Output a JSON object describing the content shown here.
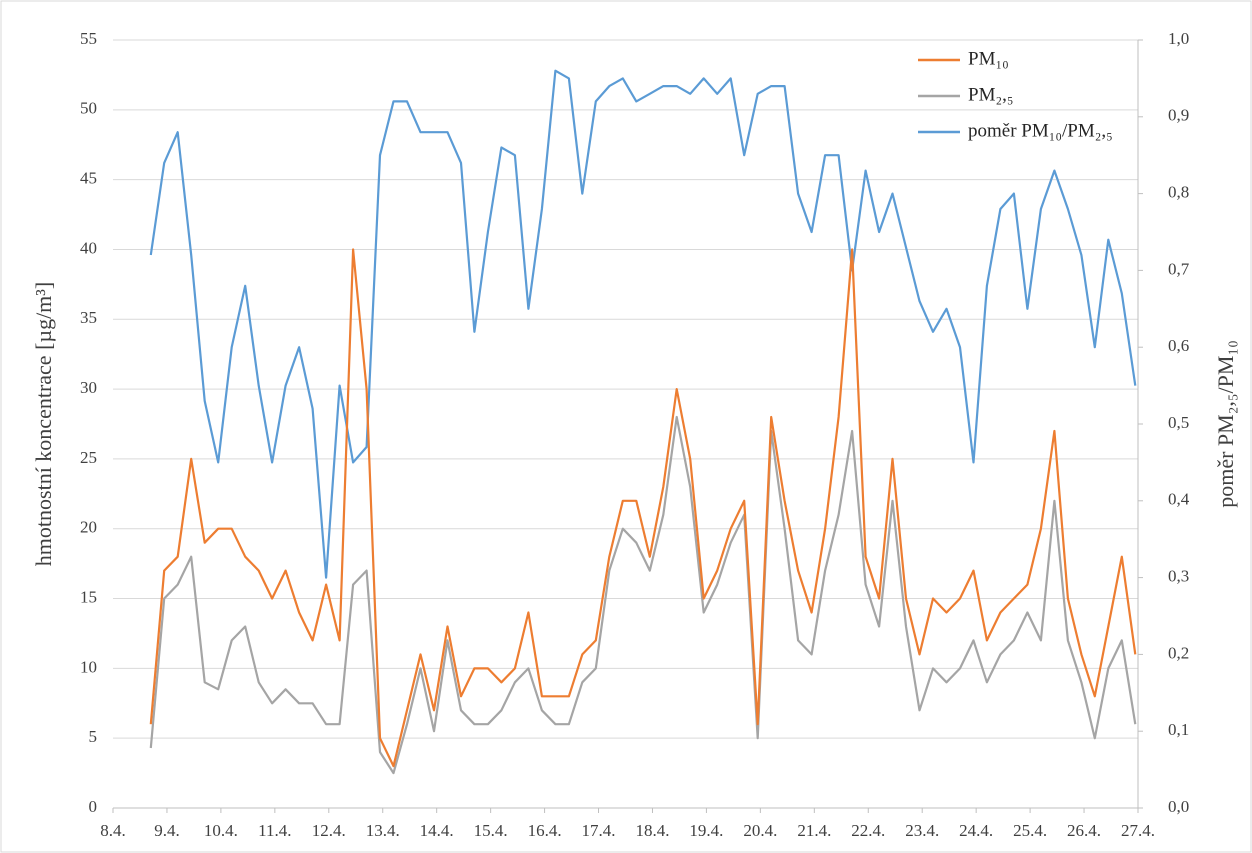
{
  "chart_data": {
    "type": "line",
    "y_label": "hmotnostní koncentrace [µg/m³]",
    "y2_label": "poměr PM₂,₅/PM₁₀",
    "legend": "top-right",
    "grid": true,
    "xlim": [
      8,
      27
    ],
    "xticks": [
      {
        "value": 8,
        "label": "8.4."
      },
      {
        "value": 9,
        "label": "9.4."
      },
      {
        "value": 10,
        "label": "10.4."
      },
      {
        "value": 11,
        "label": "11.4."
      },
      {
        "value": 12,
        "label": "12.4."
      },
      {
        "value": 13,
        "label": "13.4."
      },
      {
        "value": 14,
        "label": "14.4."
      },
      {
        "value": 15,
        "label": "15.4."
      },
      {
        "value": 16,
        "label": "16.4."
      },
      {
        "value": 17,
        "label": "17.4."
      },
      {
        "value": 18,
        "label": "18.4."
      },
      {
        "value": 19,
        "label": "19.4."
      },
      {
        "value": 20,
        "label": "20.4."
      },
      {
        "value": 21,
        "label": "21.4."
      },
      {
        "value": 22,
        "label": "22.4."
      },
      {
        "value": 23,
        "label": "23.4."
      },
      {
        "value": 24,
        "label": "24.4."
      },
      {
        "value": 25,
        "label": "25.4."
      },
      {
        "value": 26,
        "label": "26.4."
      },
      {
        "value": 27,
        "label": "27.4."
      }
    ],
    "ylim": [
      0,
      55
    ],
    "yticks": [
      0,
      5,
      10,
      15,
      20,
      25,
      30,
      35,
      40,
      45,
      50,
      55
    ],
    "y2lim": [
      0,
      1
    ],
    "y2ticks": [
      {
        "value": 0,
        "label": "0,0"
      },
      {
        "value": 0.1,
        "label": "0,1"
      },
      {
        "value": 0.2,
        "label": "0,2"
      },
      {
        "value": 0.3,
        "label": "0,3"
      },
      {
        "value": 0.4,
        "label": "0,4"
      },
      {
        "value": 0.5,
        "label": "0,5"
      },
      {
        "value": 0.6,
        "label": "0,6"
      },
      {
        "value": 0.7,
        "label": "0,7"
      },
      {
        "value": 0.8,
        "label": "0,8"
      },
      {
        "value": 0.9,
        "label": "0,9"
      },
      {
        "value": 1,
        "label": "1,0"
      }
    ],
    "x": [
      8.7,
      8.95,
      9.2,
      9.45,
      9.7,
      9.95,
      10.2,
      10.45,
      10.7,
      10.95,
      11.2,
      11.45,
      11.7,
      11.95,
      12.2,
      12.45,
      12.7,
      12.95,
      13.2,
      13.45,
      13.7,
      13.95,
      14.2,
      14.45,
      14.7,
      14.95,
      15.2,
      15.45,
      15.7,
      15.95,
      16.2,
      16.45,
      16.7,
      16.95,
      17.2,
      17.45,
      17.7,
      17.95,
      18.2,
      18.45,
      18.7,
      18.95,
      19.2,
      19.45,
      19.7,
      19.95,
      20.2,
      20.45,
      20.7,
      20.95,
      21.2,
      21.45,
      21.7,
      21.95,
      22.2,
      22.45,
      22.7,
      22.95,
      23.2,
      23.45,
      23.7,
      23.95,
      24.2,
      24.45,
      24.7,
      24.95,
      25.2,
      25.45,
      25.7,
      25.95,
      26.2,
      26.45,
      26.7,
      26.95
    ],
    "series": [
      {
        "name": "poměr PM₁₀/PM₂,₅",
        "color": "#5b9bd5",
        "axis": "y2",
        "values": [
          0.72,
          0.84,
          0.88,
          0.72,
          0.53,
          0.45,
          0.6,
          0.68,
          0.55,
          0.45,
          0.55,
          0.6,
          0.52,
          0.3,
          0.55,
          0.45,
          0.47,
          0.85,
          0.92,
          0.92,
          0.88,
          0.88,
          0.88,
          0.84,
          0.62,
          0.75,
          0.86,
          0.85,
          0.65,
          0.78,
          0.96,
          0.95,
          0.8,
          0.92,
          0.94,
          0.95,
          0.92,
          0.93,
          0.94,
          0.94,
          0.93,
          0.95,
          0.93,
          0.95,
          0.85,
          0.93,
          0.94,
          0.94,
          0.8,
          0.75,
          0.85,
          0.85,
          0.7,
          0.83,
          0.75,
          0.8,
          0.73,
          0.66,
          0.62,
          0.65,
          0.6,
          0.45,
          0.68,
          0.78,
          0.8,
          0.65,
          0.78,
          0.83,
          0.78,
          0.72,
          0.6,
          0.74,
          0.67,
          0.55
        ]
      },
      {
        "name": "PM₂,₅",
        "color": "#a5a5a5",
        "values": [
          4.3,
          15,
          16,
          18,
          9,
          8.5,
          12,
          13,
          9,
          7.5,
          8.5,
          7.5,
          7.5,
          6,
          6,
          16,
          17,
          4,
          2.5,
          6,
          10,
          5.5,
          12,
          7,
          6,
          6,
          7,
          9,
          10,
          7,
          6,
          6,
          9,
          10,
          17,
          20,
          19,
          17,
          21,
          28,
          23,
          14,
          16,
          19,
          21,
          5,
          27,
          20,
          12,
          11,
          17,
          21,
          27,
          16,
          13,
          22,
          13,
          7,
          10,
          9,
          10,
          12,
          9,
          11,
          12,
          14,
          12,
          22,
          12,
          9,
          5,
          10,
          12,
          6
        ]
      },
      {
        "name": "PM₁₀",
        "color": "#ed7d31",
        "values": [
          6,
          17,
          18,
          25,
          19,
          20,
          20,
          18,
          17,
          15,
          17,
          14,
          12,
          16,
          12,
          40,
          30,
          5,
          3,
          7,
          11,
          7,
          13,
          8,
          10,
          10,
          9,
          10,
          14,
          8,
          8,
          8,
          11,
          12,
          18,
          22,
          22,
          18,
          23,
          30,
          25,
          15,
          17,
          20,
          22,
          6,
          28,
          22,
          17,
          14,
          20,
          28,
          40,
          18,
          15,
          25,
          15,
          11,
          15,
          14,
          15,
          17,
          12,
          14,
          15,
          16,
          20,
          27,
          15,
          11,
          8,
          13,
          18,
          11
        ]
      }
    ]
  }
}
